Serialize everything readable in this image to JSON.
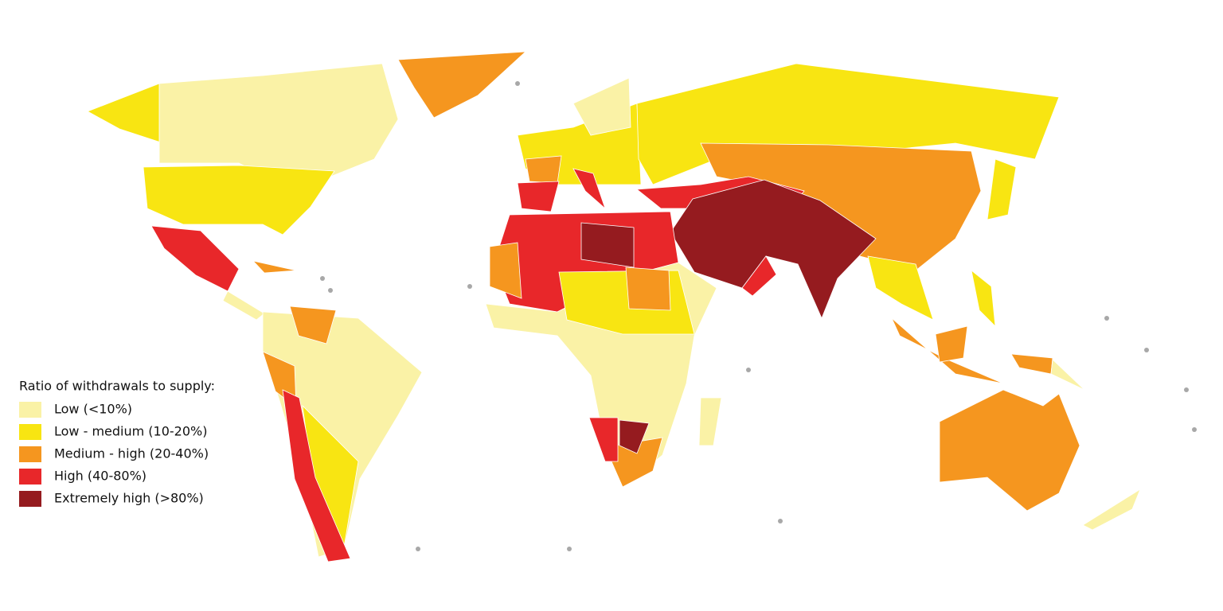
{
  "legend": {
    "title": "Ratio of withdrawals to supply:",
    "items": [
      {
        "label": "Low (<10%)",
        "color": "#faf2a6"
      },
      {
        "label": "Low - medium (10-20%)",
        "color": "#f8e512"
      },
      {
        "label": "Medium - high (20-40%)",
        "color": "#f5961f"
      },
      {
        "label": "High (40-80%)",
        "color": "#e8272a"
      },
      {
        "label": "Extremely high (>80%)",
        "color": "#951b1f"
      }
    ]
  }
}
